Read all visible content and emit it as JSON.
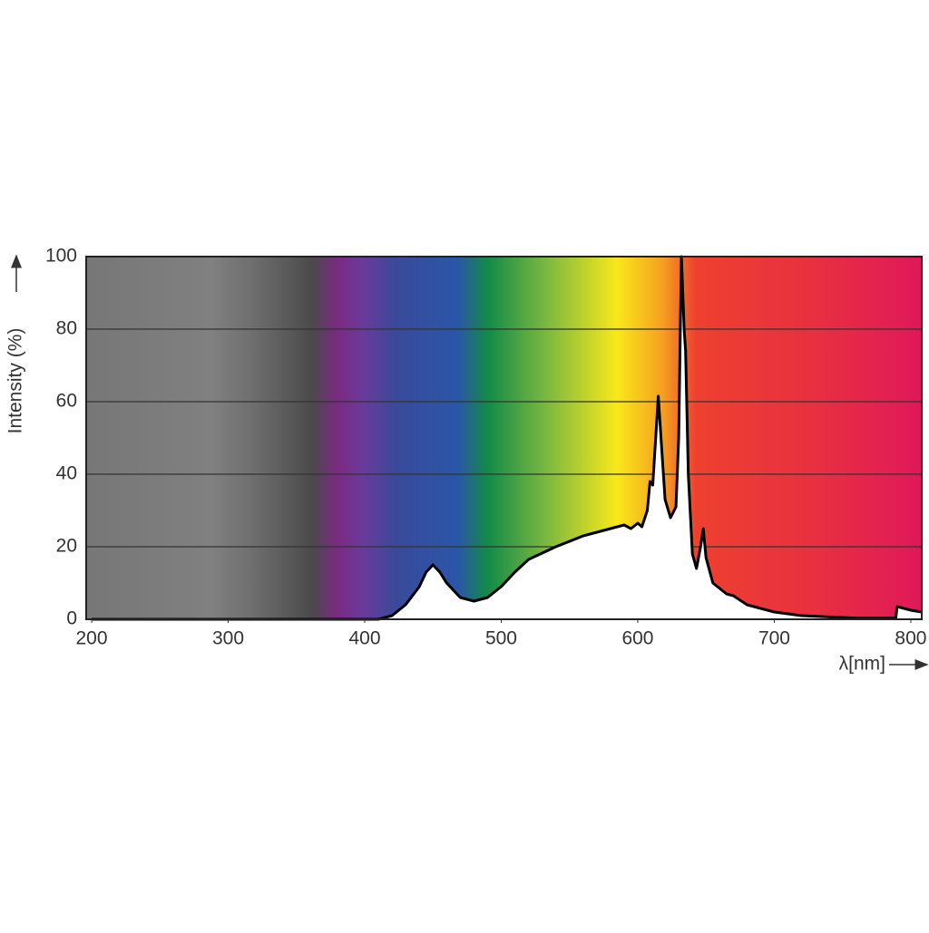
{
  "chart_data": {
    "type": "area",
    "ylabel": "Intensity (%)",
    "xlabel": "λ[nm]",
    "xlim": [
      196,
      808
    ],
    "xticks": [
      200,
      300,
      400,
      500,
      600,
      700,
      800
    ],
    "ylim": [
      0,
      100
    ],
    "yticks": [
      0,
      20,
      40,
      60,
      80,
      100
    ],
    "grid": true,
    "series": [
      {
        "color": "#000000",
        "x": [
          200,
          410,
          420,
          430,
          440,
          445,
          450,
          455,
          460,
          470,
          480,
          490,
          500,
          510,
          520,
          540,
          560,
          580,
          590,
          595,
          600,
          603,
          607,
          609,
          611,
          614,
          615,
          617,
          620,
          624,
          628,
          630,
          632,
          634,
          635,
          637,
          640,
          643,
          646,
          648,
          650,
          655,
          665,
          670,
          680,
          700,
          720,
          760,
          789,
          790,
          800,
          808
        ],
        "values": [
          0,
          0,
          1,
          4,
          9,
          13,
          15,
          13,
          10,
          6,
          5,
          6,
          9,
          13,
          16.5,
          20,
          23,
          25,
          26,
          25,
          26.5,
          25.5,
          30,
          38,
          37,
          55,
          61.5,
          50,
          33,
          28,
          31,
          50,
          100,
          80,
          74,
          40,
          18,
          14,
          20,
          25,
          17,
          10,
          7,
          6.5,
          4,
          2,
          1,
          0.3,
          0.3,
          3.5,
          2.5,
          2
        ]
      }
    ]
  }
}
